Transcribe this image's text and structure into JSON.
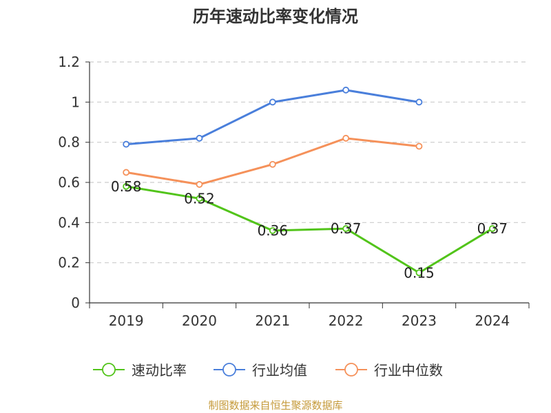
{
  "chart_data": {
    "type": "line",
    "title": "历年速动比率变化情况",
    "xlabel": "",
    "ylabel": "",
    "categories": [
      "2019",
      "2020",
      "2021",
      "2022",
      "2023",
      "2024"
    ],
    "ylim": [
      0,
      1.2
    ],
    "yticks": [
      "0",
      "0.2",
      "0.4",
      "0.6",
      "0.8",
      "1",
      "1.2"
    ],
    "grid": true,
    "legend_position": "bottom",
    "series": [
      {
        "name": "速动比率",
        "color": "#52c41a",
        "values": [
          0.58,
          0.52,
          0.36,
          0.37,
          0.15,
          0.37
        ],
        "labels": [
          "0.58",
          "0.52",
          "0.36",
          "0.37",
          "0.15",
          "0.37"
        ]
      },
      {
        "name": "行业均值",
        "color": "#4a7fdb",
        "values": [
          0.79,
          0.82,
          1.0,
          1.06,
          1.0,
          null
        ]
      },
      {
        "name": "行业中位数",
        "color": "#f5915a",
        "values": [
          0.65,
          0.59,
          0.69,
          0.82,
          0.78,
          null
        ]
      }
    ]
  },
  "footer": {
    "source": "制图数据来自恒生聚源数据库"
  }
}
